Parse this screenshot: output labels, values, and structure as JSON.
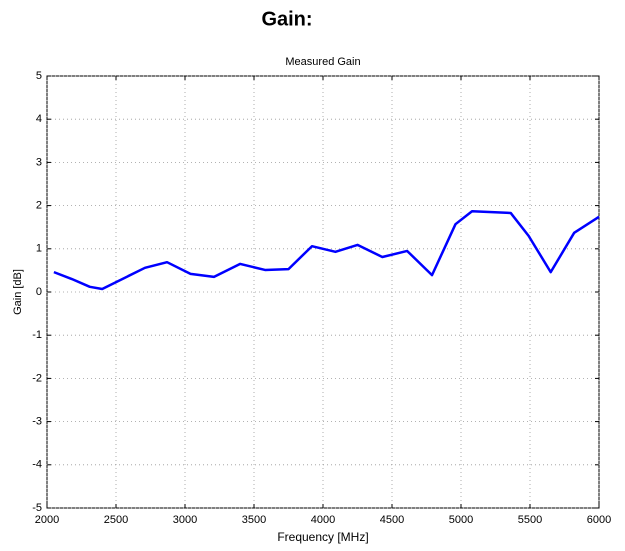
{
  "heading": "Gain:",
  "chart_data": {
    "type": "line",
    "title": "Measured Gain",
    "xlabel": "Frequency [MHz]",
    "ylabel": "Gain [dB]",
    "x": [
      2050,
      2180,
      2310,
      2400,
      2710,
      2870,
      3040,
      3210,
      3400,
      3580,
      3750,
      3920,
      4090,
      4250,
      4430,
      4610,
      4790,
      4960,
      5080,
      5360,
      5490,
      5650,
      5820,
      6000
    ],
    "series": [
      {
        "name": "Gain",
        "color": "#0000ff",
        "values": [
          0.46,
          0.3,
          0.12,
          0.07,
          0.56,
          0.69,
          0.42,
          0.35,
          0.65,
          0.51,
          0.53,
          1.06,
          0.93,
          1.09,
          0.81,
          0.95,
          0.39,
          1.57,
          1.87,
          1.83,
          1.3,
          0.46,
          1.37,
          1.74
        ]
      }
    ],
    "xlim": [
      2000,
      6000
    ],
    "xticks": [
      2000,
      2500,
      3000,
      3500,
      4000,
      4500,
      5000,
      5500,
      6000
    ],
    "ylim": [
      -5,
      5
    ],
    "yticks": [
      -5,
      -4,
      -3,
      -2,
      -1,
      0,
      1,
      2,
      3,
      4,
      5
    ],
    "grid": true
  }
}
